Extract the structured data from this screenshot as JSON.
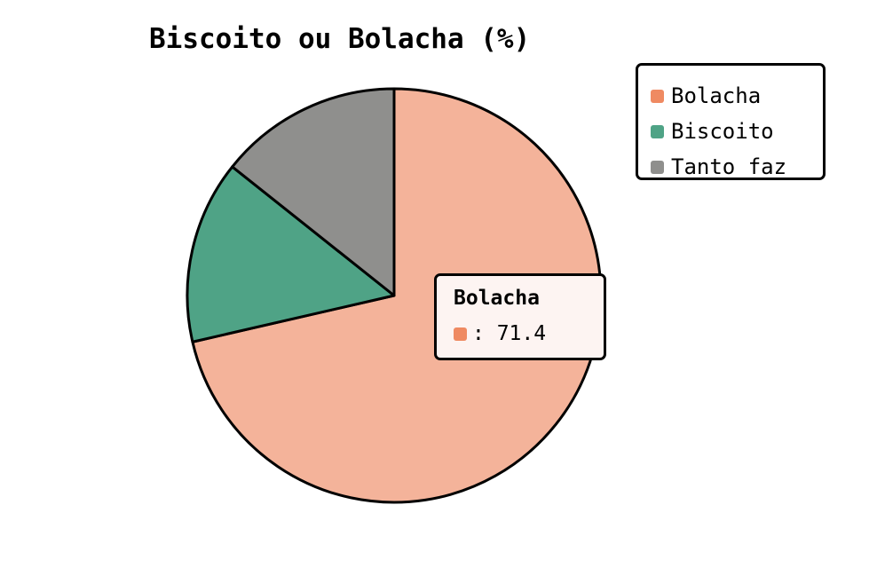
{
  "chart_data": {
    "type": "pie",
    "title": "Biscoito ou Bolacha (%)",
    "categories": [
      "Bolacha",
      "Biscoito",
      "Tanto faz"
    ],
    "values": [
      71.4,
      14.3,
      14.3
    ],
    "colors": [
      "#f4b39a",
      "#4fa386",
      "#8f8f8d"
    ],
    "legend_colors": [
      "#ef8a62",
      "#4fa386",
      "#8f8f8d"
    ],
    "legend_position": "top-right"
  },
  "tooltip": {
    "title": "Bolacha",
    "separator": ": ",
    "value": "71.4",
    "swatch_color": "#ef8a62"
  }
}
